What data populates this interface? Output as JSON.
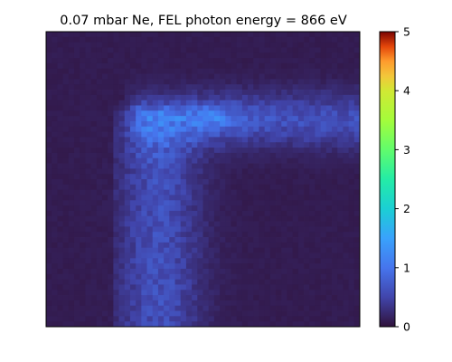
{
  "chart_data": {
    "type": "heatmap",
    "title": "0.07 mbar Ne, FEL photon energy = 866 eV",
    "xlabel": "",
    "ylabel": "",
    "colormap": "turbo",
    "colorbar": {
      "ticks": [
        0,
        1,
        2,
        3,
        4,
        5
      ],
      "tick_labels": [
        "0",
        "1",
        "2",
        "3",
        "4",
        "5"
      ],
      "range": [
        0,
        5
      ]
    },
    "axes_ticks_visible": false,
    "grid": false,
    "description_of_values": {
      "background_level": 0.1,
      "vertical_band_level": 0.6,
      "horizontal_band_level": 0.7,
      "peak_level": 1.0
    }
  }
}
